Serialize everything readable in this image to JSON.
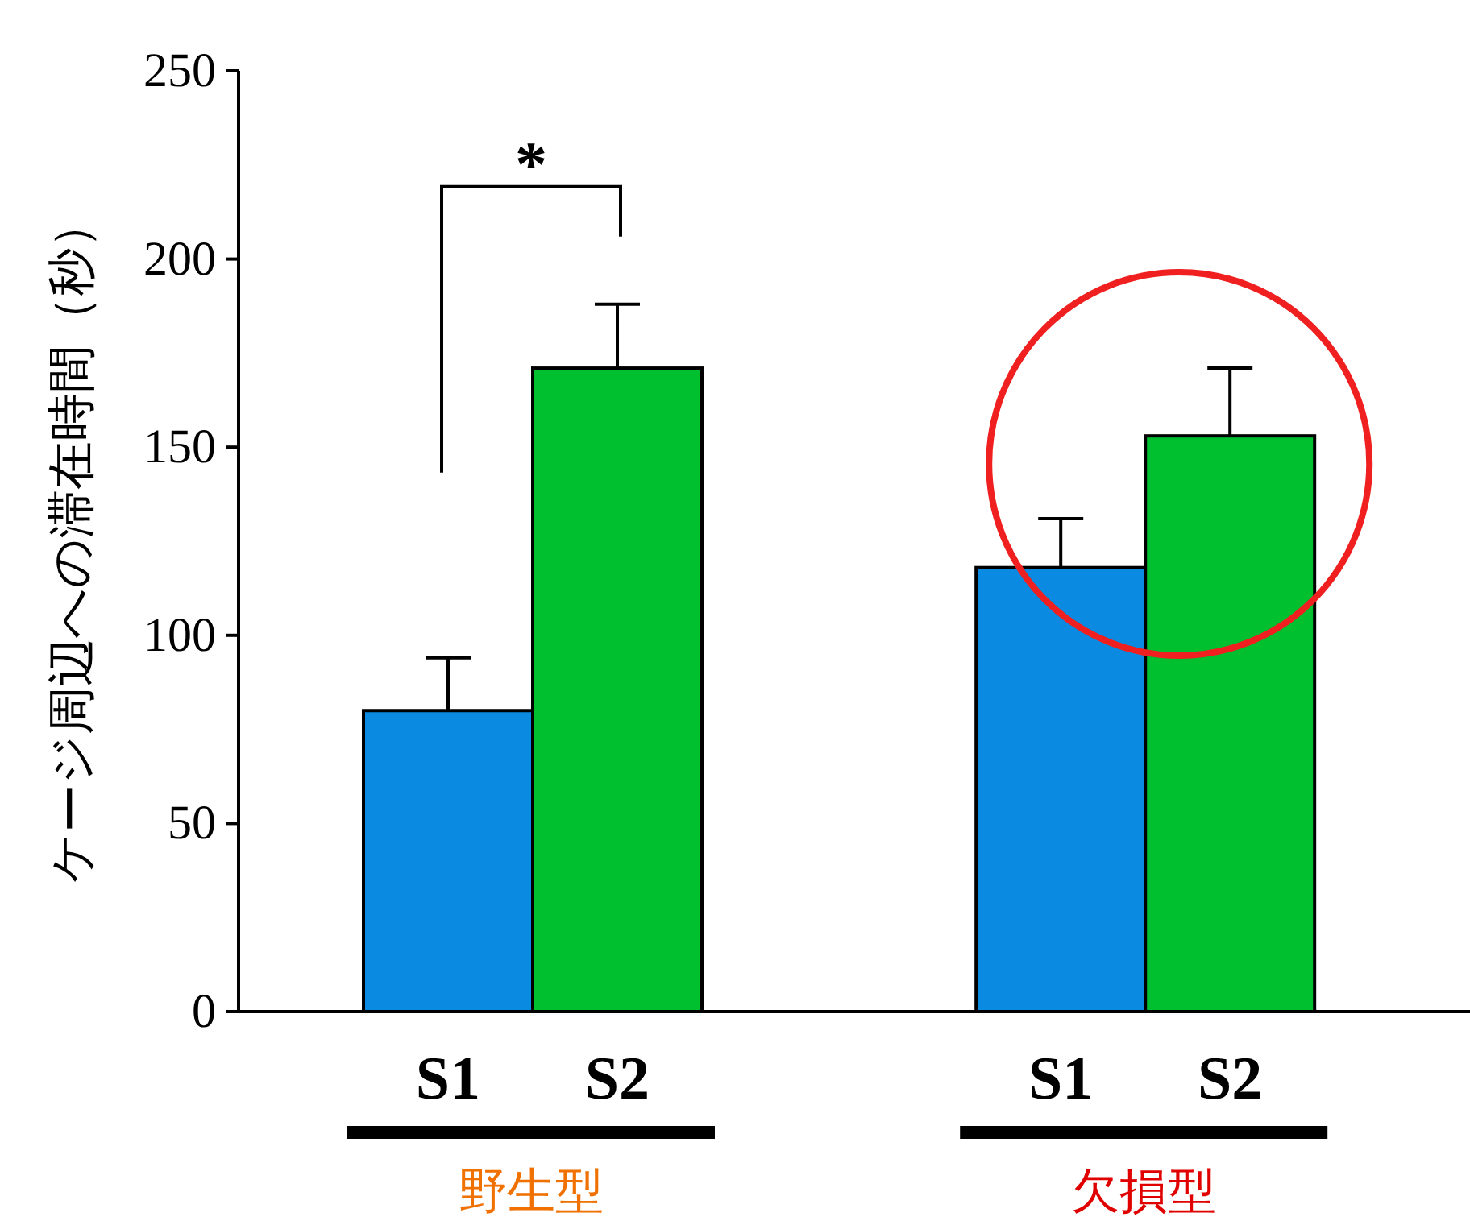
{
  "chart_data": {
    "type": "bar",
    "ylabel": "ケージ周辺への滞在時間（秒）",
    "categories": [
      "S1",
      "S2",
      "S1",
      "S2"
    ],
    "values": [
      80,
      171,
      118,
      153
    ],
    "colors": [
      "#0a8ae0",
      "#00c030",
      "#0a8ae0",
      "#00c030"
    ],
    "errors": [
      [
        80,
        94
      ],
      [
        171,
        188
      ],
      [
        118,
        131
      ],
      [
        153,
        171
      ]
    ],
    "ylim": [
      0,
      250
    ],
    "yticks": [
      0,
      50,
      100,
      150,
      200,
      250
    ],
    "grid": false,
    "annotations": [
      "*",
      "野生型",
      "欠損型"
    ]
  }
}
